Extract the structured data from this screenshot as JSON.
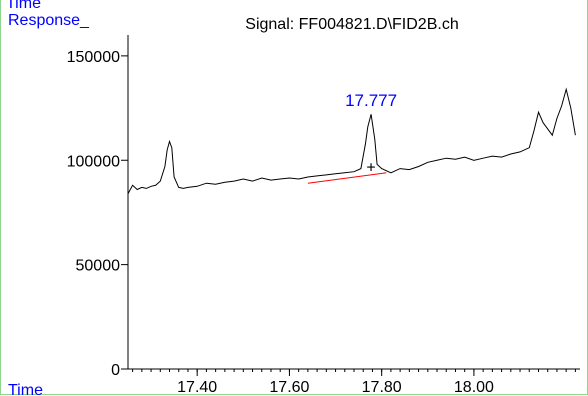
{
  "chart_data": {
    "type": "line",
    "title": "Signal: FF004821.D\\FID2B.ch",
    "ylabel_top": "Time",
    "ylabel": "Response_",
    "xlabel": "Time",
    "xlim": [
      17.25,
      18.23
    ],
    "ylim": [
      0,
      160000
    ],
    "x_ticks": [
      17.4,
      17.6,
      17.8,
      18.0
    ],
    "x_tick_labels": [
      "17.40",
      "17.60",
      "17.80",
      "18.00"
    ],
    "y_ticks": [
      0,
      50000,
      100000,
      150000
    ],
    "y_tick_labels": [
      "0",
      "50000",
      "100000",
      "150000"
    ],
    "grid": false,
    "series": [
      {
        "color": "#000000",
        "x": [
          17.25,
          17.26,
          17.27,
          17.28,
          17.29,
          17.3,
          17.31,
          17.32,
          17.33,
          17.335,
          17.34,
          17.345,
          17.35,
          17.36,
          17.37,
          17.38,
          17.4,
          17.42,
          17.44,
          17.46,
          17.48,
          17.5,
          17.52,
          17.54,
          17.56,
          17.58,
          17.6,
          17.62,
          17.64,
          17.66,
          17.68,
          17.7,
          17.72,
          17.74,
          17.755,
          17.765,
          17.77,
          17.777,
          17.785,
          17.79,
          17.8,
          17.82,
          17.84,
          17.86,
          17.88,
          17.9,
          17.92,
          17.94,
          17.96,
          17.98,
          18.0,
          18.02,
          18.04,
          18.06,
          18.08,
          18.1,
          18.12,
          18.13,
          18.14,
          18.15,
          18.16,
          18.17,
          18.18,
          18.19,
          18.2,
          18.21,
          18.22
        ],
        "y": [
          84000,
          88000,
          86000,
          87000,
          86500,
          87500,
          88000,
          90000,
          97000,
          105000,
          109000,
          106000,
          92000,
          87000,
          86500,
          87000,
          87500,
          89000,
          88500,
          89500,
          90000,
          91000,
          90000,
          91500,
          90500,
          91000,
          91500,
          91000,
          92000,
          92500,
          93000,
          93500,
          94000,
          94500,
          96000,
          108000,
          116000,
          122000,
          110000,
          98000,
          96000,
          94000,
          96000,
          95500,
          97000,
          99000,
          100000,
          101000,
          100500,
          101500,
          100000,
          101000,
          102000,
          101500,
          103000,
          104000,
          106000,
          114000,
          123000,
          118000,
          115000,
          112000,
          120000,
          126000,
          134000,
          125000,
          112000
        ]
      }
    ],
    "baseline": {
      "color": "#ff0000",
      "x": [
        17.64,
        17.81
      ],
      "y": [
        89000,
        94000
      ]
    },
    "annotations": [
      {
        "text": "17.777",
        "x": 17.777,
        "y": 124000,
        "color": "#0000ff"
      },
      {
        "text": "+",
        "x": 17.777,
        "y": 97000,
        "color": "#000000"
      }
    ]
  }
}
